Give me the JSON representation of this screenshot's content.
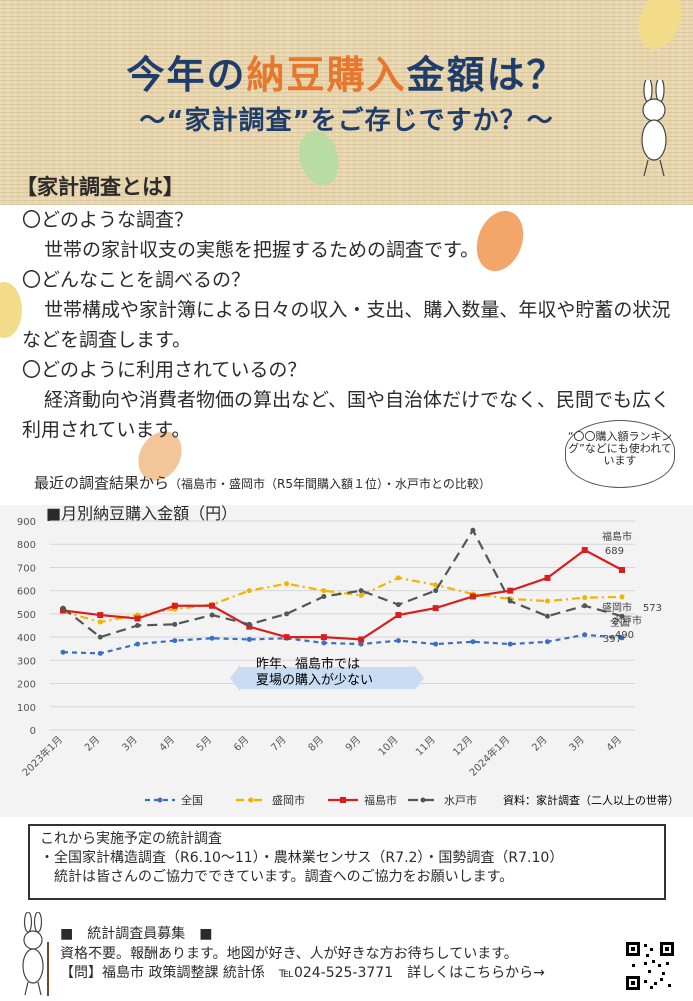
{
  "header": {
    "title_part1": "今年の",
    "title_accent": "納豆購入",
    "title_part2": "金額は？",
    "subtitle": "～“家計調査”をご存じですか？～",
    "section_heading": "【家計調査とは】"
  },
  "faq": [
    {
      "q": "〇どのような調査？",
      "a": "世帯の家計収支の実態を把握するための調査です。"
    },
    {
      "q": "〇どんなことを調べるの？",
      "a": "世帯構成や家計簿による日々の収入・支出、購入数量、年収や貯蓄の状況などを調査します。"
    },
    {
      "q": "〇どのように利用されているの？",
      "a": "経済動向や消費者物価の算出など、国や自治体だけでなく、民間でも広く利用されています。"
    }
  ],
  "callout": "“〇〇購入額ランキング”などにも使われています",
  "chart_intro": {
    "main": "最近の調査結果から",
    "small": "（福島市・盛岡市（R5年間購入額１位）・水戸市との比較）"
  },
  "chart_title": "■月別納豆購入金額（円）",
  "chart_data": {
    "type": "line",
    "categories": [
      "2023年1月",
      "2月",
      "3月",
      "4月",
      "5月",
      "6月",
      "7月",
      "8月",
      "9月",
      "10月",
      "11月",
      "12月",
      "2024年1月",
      "2月",
      "3月",
      "4月"
    ],
    "ylim": [
      0,
      900
    ],
    "yticks": [
      0,
      100,
      200,
      300,
      400,
      500,
      600,
      700,
      800,
      900
    ],
    "series": [
      {
        "name": "全国",
        "color": "#3a6fc4",
        "dash": "dash",
        "values": [
          335,
          330,
          370,
          385,
          395,
          390,
          395,
          375,
          370,
          385,
          370,
          380,
          370,
          380,
          410,
          397
        ]
      },
      {
        "name": "盛岡市",
        "color": "#f0b400",
        "dash": "dashdot",
        "values": [
          510,
          465,
          495,
          520,
          540,
          600,
          630,
          600,
          580,
          655,
          625,
          585,
          565,
          555,
          570,
          573
        ]
      },
      {
        "name": "福島市",
        "color": "#d91e1e",
        "dash": "solid",
        "values": [
          515,
          495,
          480,
          535,
          535,
          445,
          400,
          400,
          390,
          495,
          525,
          575,
          600,
          655,
          775,
          689
        ]
      },
      {
        "name": "水戸市",
        "color": "#555555",
        "dash": "longdash",
        "values": [
          525,
          400,
          450,
          455,
          495,
          455,
          500,
          575,
          600,
          540,
          600,
          860,
          555,
          490,
          535,
          490
        ]
      }
    ],
    "end_labels": [
      {
        "series": "福島市",
        "text": "福島市",
        "value": "689"
      },
      {
        "series": "盛岡市",
        "text": "盛岡市",
        "value": "573"
      },
      {
        "series": "水戸市",
        "text": "水戸市",
        "value": "490"
      },
      {
        "series": "全国",
        "text": "全国",
        "value": "397"
      }
    ],
    "annotation_line1": "昨年、福島市では",
    "annotation_line2": "夏場の購入が少ない",
    "source": "資料：家計調査（二人以上の世帯）"
  },
  "upcoming": {
    "heading": "これから実施予定の統計調査",
    "list": "・全国家計構造調査（R6.10～11）・農林業センサス（R7.2）・国勢調査（R7.10）",
    "note": "統計は皆さんのご協力でできています。調査へのご協力をお願いします。"
  },
  "recruit": {
    "heading": "■　統計調査員募集　■",
    "text": "資格不要。報酬あります。地図が好き、人が好きな方お待ちしています。",
    "contact": "【問】福島市 政策調整課 統計係　℡024-525-3771　詳しくはこちらから→"
  }
}
